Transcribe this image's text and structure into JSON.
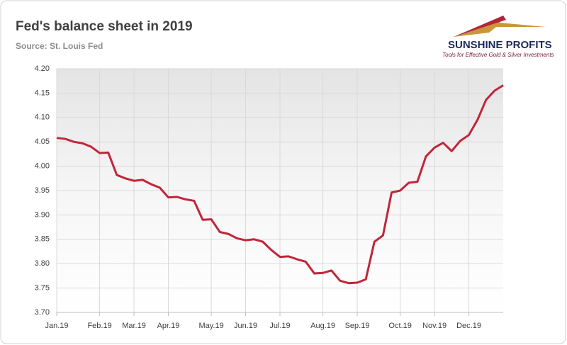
{
  "chart_data": {
    "type": "line",
    "title": "Fed's balance sheet in 2019",
    "subtitle": "Source: St. Louis Fed",
    "logo": "SUNSHINE PROFITS",
    "logo_tagline": "Tools for Effective Gold & Silver Investments",
    "categories": [
      "Jan.19",
      null,
      null,
      null,
      null,
      "Feb.19",
      null,
      null,
      null,
      "Mar.19",
      null,
      null,
      null,
      "Apr.19",
      null,
      null,
      null,
      null,
      "May.19",
      null,
      null,
      null,
      "Jun.19",
      null,
      null,
      null,
      "Jul.19",
      null,
      null,
      null,
      null,
      "Aug.19",
      null,
      null,
      null,
      "Sep.19",
      null,
      null,
      null,
      null,
      "Oct.19",
      null,
      null,
      null,
      "Nov.19",
      null,
      null,
      null,
      "Dec.19",
      null,
      null,
      null,
      null
    ],
    "series": [
      {
        "name": "Fed's balance sheet",
        "color": "#c0263a",
        "values": [
          4.058,
          4.056,
          4.05,
          4.047,
          4.04,
          4.027,
          4.028,
          3.982,
          3.975,
          3.97,
          3.972,
          3.963,
          3.956,
          3.936,
          3.937,
          3.932,
          3.929,
          3.89,
          3.891,
          3.865,
          3.861,
          3.852,
          3.848,
          3.85,
          3.845,
          3.828,
          3.814,
          3.815,
          3.809,
          3.804,
          3.78,
          3.781,
          3.786,
          3.765,
          3.76,
          3.761,
          3.768,
          3.845,
          3.858,
          3.946,
          3.95,
          3.966,
          3.968,
          4.02,
          4.038,
          4.048,
          4.031,
          4.052,
          4.064,
          4.095,
          4.136,
          4.155,
          4.166
        ]
      }
    ],
    "ylim": [
      3.7,
      4.2
    ],
    "yticks": [
      {
        "value": 3.7,
        "label": "3.70"
      },
      3.75,
      {
        "value": 3.8,
        "label": "3.80"
      },
      3.85,
      {
        "value": 3.9,
        "label": "3.90"
      },
      3.95,
      {
        "value": 4.0,
        "label": "4.00"
      },
      4.05,
      {
        "value": 4.1,
        "label": "4.10"
      },
      4.15,
      {
        "value": 4.2,
        "label": "4.20"
      }
    ],
    "grid": true
  }
}
